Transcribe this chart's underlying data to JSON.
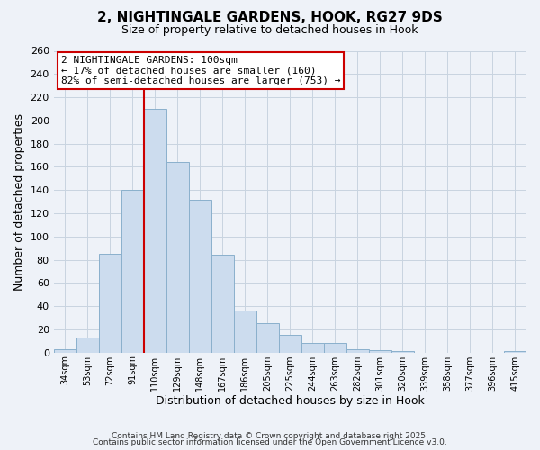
{
  "title": "2, NIGHTINGALE GARDENS, HOOK, RG27 9DS",
  "subtitle": "Size of property relative to detached houses in Hook",
  "xlabel": "Distribution of detached houses by size in Hook",
  "ylabel": "Number of detached properties",
  "bar_color": "#ccdcee",
  "bar_edge_color": "#8ab0cc",
  "categories": [
    "34sqm",
    "53sqm",
    "72sqm",
    "91sqm",
    "110sqm",
    "129sqm",
    "148sqm",
    "167sqm",
    "186sqm",
    "205sqm",
    "225sqm",
    "244sqm",
    "263sqm",
    "282sqm",
    "301sqm",
    "320sqm",
    "339sqm",
    "358sqm",
    "377sqm",
    "396sqm",
    "415sqm"
  ],
  "values": [
    3,
    13,
    85,
    140,
    210,
    164,
    132,
    84,
    36,
    25,
    15,
    8,
    8,
    3,
    2,
    1,
    0,
    0,
    0,
    0,
    1
  ],
  "ylim": [
    0,
    260
  ],
  "yticks": [
    0,
    20,
    40,
    60,
    80,
    100,
    120,
    140,
    160,
    180,
    200,
    220,
    240,
    260
  ],
  "vline_color": "#cc0000",
  "vline_bin_index": 4,
  "annotation_title": "2 NIGHTINGALE GARDENS: 100sqm",
  "annotation_line1": "← 17% of detached houses are smaller (160)",
  "annotation_line2": "82% of semi-detached houses are larger (753) →",
  "annotation_box_facecolor": "#ffffff",
  "annotation_box_edgecolor": "#cc0000",
  "grid_color": "#c8d4e0",
  "background_color": "#eef2f8",
  "footer1": "Contains HM Land Registry data © Crown copyright and database right 2025.",
  "footer2": "Contains public sector information licensed under the Open Government Licence v3.0."
}
